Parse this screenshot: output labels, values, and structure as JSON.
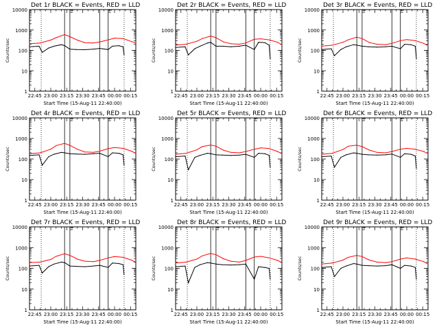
{
  "figure": {
    "xlabel": "Start Time (15-Aug-11 22:40:00)",
    "ylabel": "Counts/sec",
    "x_tick_labels": [
      "22:45",
      "23:00",
      "23:15",
      "23:30",
      "23:45",
      "00:00",
      "00:15"
    ],
    "y_tick_labels": [
      "1",
      "10",
      "100",
      "1000",
      "10000"
    ],
    "attenuator_labels": [
      "A",
      "A"
    ],
    "colors": {
      "events": "#000000",
      "lld": "#ff0000"
    }
  },
  "chart_data": [
    {
      "type": "line",
      "title": "Det 1r BLACK = Events, RED = LLD",
      "xlabel": "Start Time (15-Aug-11 22:40:00)",
      "ylabel": "Counts/sec",
      "ylim": [
        1,
        10000
      ],
      "yscale": "log",
      "vlines_dotted": [
        "22:51",
        "00:09"
      ],
      "vlines_solid": [
        "23:13",
        "23:18",
        "23:46",
        "23:54"
      ],
      "series": [
        {
          "name": "Events",
          "x": [
            "22:40",
            "22:49",
            "22:52",
            "22:58",
            "23:03",
            "23:10",
            "23:13",
            "23:18",
            "23:24",
            "23:32",
            "23:40",
            "23:46",
            "23:54",
            "23:58",
            "00:04",
            "00:08",
            "00:09"
          ],
          "y": [
            150,
            160,
            80,
            130,
            160,
            190,
            170,
            115,
            110,
            108,
            115,
            125,
            110,
            160,
            170,
            150,
            60
          ]
        },
        {
          "name": "LLD",
          "x": [
            "22:40",
            "22:50",
            "23:00",
            "23:05",
            "23:13",
            "23:18",
            "23:25",
            "23:32",
            "23:40",
            "23:46",
            "23:54",
            "00:00",
            "00:08",
            "00:16",
            "00:19"
          ],
          "y": [
            210,
            230,
            320,
            420,
            600,
            470,
            320,
            240,
            230,
            260,
            330,
            400,
            380,
            270,
            240
          ]
        }
      ]
    },
    {
      "type": "line",
      "title": "Det 2r BLACK = Events, RED = LLD",
      "xlabel": "Start Time (15-Aug-11 22:40:00)",
      "ylabel": "Counts/sec",
      "ylim": [
        1,
        10000
      ],
      "yscale": "log",
      "vlines_dotted": [
        "22:51",
        "00:09"
      ],
      "vlines_solid": [
        "23:13",
        "23:18",
        "23:46",
        "23:54"
      ],
      "series": [
        {
          "name": "Events",
          "x": [
            "22:40",
            "22:49",
            "22:52",
            "22:58",
            "23:03",
            "23:10",
            "23:13",
            "23:18",
            "23:24",
            "23:32",
            "23:40",
            "23:46",
            "23:54",
            "23:58",
            "00:04",
            "00:08",
            "00:09"
          ],
          "y": [
            140,
            150,
            60,
            120,
            160,
            230,
            250,
            160,
            160,
            150,
            160,
            180,
            110,
            250,
            240,
            180,
            40
          ]
        },
        {
          "name": "LLD",
          "x": [
            "22:40",
            "22:50",
            "23:00",
            "23:05",
            "23:13",
            "23:18",
            "23:25",
            "23:32",
            "23:40",
            "23:46",
            "23:54",
            "00:00",
            "00:08",
            "00:16",
            "00:19"
          ],
          "y": [
            180,
            200,
            280,
            380,
            500,
            420,
            260,
            210,
            200,
            230,
            350,
            370,
            330,
            250,
            200
          ]
        }
      ]
    },
    {
      "type": "line",
      "title": "Det 3r BLACK = Events, RED = LLD",
      "xlabel": "Start Time (15-Aug-11 22:40:00)",
      "ylabel": "Counts/sec",
      "ylim": [
        1,
        10000
      ],
      "yscale": "log",
      "vlines_dotted": [
        "22:51",
        "00:09"
      ],
      "vlines_solid": [
        "23:13",
        "23:18",
        "23:46",
        "23:54"
      ],
      "series": [
        {
          "name": "Events",
          "x": [
            "22:40",
            "22:49",
            "22:52",
            "22:58",
            "23:03",
            "23:10",
            "23:13",
            "23:18",
            "23:24",
            "23:32",
            "23:40",
            "23:46",
            "23:54",
            "23:58",
            "00:04",
            "00:08",
            "00:09"
          ],
          "y": [
            110,
            120,
            55,
            110,
            150,
            190,
            180,
            160,
            150,
            145,
            150,
            160,
            120,
            200,
            190,
            160,
            40
          ]
        },
        {
          "name": "LLD",
          "x": [
            "22:40",
            "22:50",
            "23:00",
            "23:05",
            "23:13",
            "23:18",
            "23:25",
            "23:32",
            "23:40",
            "23:46",
            "23:54",
            "00:00",
            "00:08",
            "00:16",
            "00:19"
          ],
          "y": [
            160,
            180,
            250,
            330,
            450,
            380,
            240,
            200,
            190,
            220,
            300,
            340,
            300,
            220,
            180
          ]
        }
      ]
    },
    {
      "type": "line",
      "title": "Det 4r BLACK = Events, RED = LLD",
      "xlabel": "Start Time (15-Aug-11 22:40:00)",
      "ylabel": "Counts/sec",
      "ylim": [
        1,
        10000
      ],
      "yscale": "log",
      "vlines_dotted": [
        "22:51",
        "00:09"
      ],
      "vlines_solid": [
        "23:13",
        "23:18",
        "23:46",
        "23:54"
      ],
      "series": [
        {
          "name": "Events",
          "x": [
            "22:40",
            "22:49",
            "22:52",
            "22:58",
            "23:03",
            "23:10",
            "23:13",
            "23:18",
            "23:24",
            "23:32",
            "23:40",
            "23:46",
            "23:54",
            "23:58",
            "00:04",
            "00:08",
            "00:09"
          ],
          "y": [
            150,
            160,
            50,
            130,
            170,
            210,
            200,
            180,
            175,
            170,
            180,
            190,
            130,
            200,
            190,
            160,
            50
          ]
        },
        {
          "name": "LLD",
          "x": [
            "22:40",
            "22:50",
            "23:00",
            "23:05",
            "23:13",
            "23:18",
            "23:25",
            "23:32",
            "23:40",
            "23:46",
            "23:54",
            "00:00",
            "00:08",
            "00:16",
            "00:19"
          ],
          "y": [
            180,
            200,
            300,
            450,
            580,
            460,
            300,
            220,
            210,
            240,
            320,
            360,
            330,
            240,
            200
          ]
        }
      ]
    },
    {
      "type": "line",
      "title": "Det 5r BLACK = Events, RED = LLD",
      "xlabel": "Start Time (15-Aug-11 22:40:00)",
      "ylabel": "Counts/sec",
      "ylim": [
        1,
        10000
      ],
      "yscale": "log",
      "vlines_dotted": [
        "22:51",
        "00:09"
      ],
      "vlines_solid": [
        "23:13",
        "23:18",
        "23:46",
        "23:54"
      ],
      "series": [
        {
          "name": "Events",
          "x": [
            "22:40",
            "22:49",
            "22:52",
            "22:58",
            "23:03",
            "23:10",
            "23:13",
            "23:18",
            "23:24",
            "23:32",
            "23:40",
            "23:46",
            "23:54",
            "23:58",
            "00:04",
            "00:08",
            "00:09"
          ],
          "y": [
            130,
            140,
            30,
            120,
            150,
            190,
            180,
            160,
            155,
            150,
            155,
            170,
            120,
            190,
            180,
            150,
            40
          ]
        },
        {
          "name": "LLD",
          "x": [
            "22:40",
            "22:50",
            "23:00",
            "23:05",
            "23:13",
            "23:18",
            "23:25",
            "23:32",
            "23:40",
            "23:46",
            "23:54",
            "00:00",
            "00:08",
            "00:16",
            "00:19"
          ],
          "y": [
            170,
            190,
            280,
            400,
            480,
            420,
            270,
            210,
            200,
            230,
            300,
            350,
            320,
            230,
            190
          ]
        }
      ]
    },
    {
      "type": "line",
      "title": "Det 6r BLACK = Events, RED = LLD",
      "xlabel": "Start Time (15-Aug-11 22:40:00)",
      "ylabel": "Counts/sec",
      "ylim": [
        1,
        10000
      ],
      "yscale": "log",
      "vlines_dotted": [
        "22:51",
        "00:09"
      ],
      "vlines_solid": [
        "23:13",
        "23:18",
        "23:46",
        "23:54"
      ],
      "series": [
        {
          "name": "Events",
          "x": [
            "22:40",
            "22:49",
            "22:52",
            "22:58",
            "23:03",
            "23:10",
            "23:13",
            "23:18",
            "23:24",
            "23:32",
            "23:40",
            "23:46",
            "23:54",
            "23:58",
            "00:04",
            "00:08",
            "00:09"
          ],
          "y": [
            130,
            140,
            40,
            120,
            160,
            200,
            190,
            170,
            160,
            155,
            160,
            175,
            120,
            180,
            170,
            140,
            35
          ]
        },
        {
          "name": "LLD",
          "x": [
            "22:40",
            "22:50",
            "23:00",
            "23:05",
            "23:13",
            "23:18",
            "23:25",
            "23:32",
            "23:40",
            "23:46",
            "23:54",
            "00:00",
            "00:08",
            "00:16",
            "00:19"
          ],
          "y": [
            170,
            190,
            290,
            420,
            470,
            400,
            270,
            210,
            200,
            230,
            300,
            330,
            300,
            230,
            190
          ]
        }
      ]
    },
    {
      "type": "line",
      "title": "Det 7r BLACK = Events, RED = LLD",
      "xlabel": "Start Time (15-Aug-11 22:40:00)",
      "ylabel": "Counts/sec",
      "ylim": [
        1,
        10000
      ],
      "yscale": "log",
      "vlines_dotted": [
        "22:51",
        "00:09"
      ],
      "vlines_solid": [
        "23:13",
        "23:18",
        "23:46",
        "23:54"
      ],
      "series": [
        {
          "name": "Events",
          "x": [
            "22:40",
            "22:49",
            "22:52",
            "22:58",
            "23:03",
            "23:10",
            "23:13",
            "23:18",
            "23:24",
            "23:32",
            "23:40",
            "23:46",
            "23:54",
            "23:58",
            "00:04",
            "00:08",
            "00:09"
          ],
          "y": [
            130,
            140,
            60,
            120,
            160,
            200,
            190,
            130,
            125,
            120,
            130,
            140,
            110,
            180,
            170,
            150,
            50
          ]
        },
        {
          "name": "LLD",
          "x": [
            "22:40",
            "22:50",
            "23:00",
            "23:05",
            "23:13",
            "23:18",
            "23:25",
            "23:32",
            "23:40",
            "23:46",
            "23:54",
            "00:00",
            "00:08",
            "00:16",
            "00:19"
          ],
          "y": [
            190,
            200,
            270,
            380,
            510,
            420,
            280,
            220,
            210,
            240,
            320,
            370,
            340,
            250,
            210
          ]
        }
      ]
    },
    {
      "type": "line",
      "title": "Det 8r BLACK = Events, RED = LLD",
      "xlabel": "Start Time (15-Aug-11 22:40:00)",
      "ylabel": "Counts/sec",
      "ylim": [
        1,
        10000
      ],
      "yscale": "log",
      "vlines_dotted": [
        "22:51",
        "00:09"
      ],
      "vlines_solid": [
        "23:13",
        "23:18",
        "23:46",
        "23:54"
      ],
      "series": [
        {
          "name": "Events",
          "x": [
            "22:40",
            "22:49",
            "22:52",
            "22:58",
            "23:03",
            "23:10",
            "23:13",
            "23:18",
            "23:24",
            "23:32",
            "23:40",
            "23:46",
            "23:54",
            "23:58",
            "00:04",
            "00:08",
            "00:09"
          ],
          "y": [
            120,
            130,
            20,
            110,
            150,
            190,
            180,
            160,
            150,
            145,
            150,
            160,
            30,
            120,
            110,
            100,
            30
          ]
        },
        {
          "name": "LLD",
          "x": [
            "22:40",
            "22:50",
            "23:00",
            "23:05",
            "23:13",
            "23:18",
            "23:25",
            "23:32",
            "23:40",
            "23:46",
            "23:54",
            "00:00",
            "00:08",
            "00:16",
            "00:19"
          ],
          "y": [
            180,
            200,
            280,
            400,
            520,
            450,
            290,
            220,
            200,
            240,
            350,
            380,
            320,
            240,
            200
          ]
        }
      ]
    },
    {
      "type": "line",
      "title": "Det 9r BLACK = Events, RED = LLD",
      "xlabel": "Start Time (15-Aug-11 22:40:00)",
      "ylabel": "Counts/sec",
      "ylim": [
        1,
        10000
      ],
      "yscale": "log",
      "vlines_dotted": [
        "22:51",
        "00:09"
      ],
      "vlines_solid": [
        "23:13",
        "23:18",
        "23:46",
        "23:54"
      ],
      "series": [
        {
          "name": "Events",
          "x": [
            "22:40",
            "22:49",
            "22:52",
            "22:58",
            "23:03",
            "23:10",
            "23:13",
            "23:18",
            "23:24",
            "23:32",
            "23:40",
            "23:46",
            "23:54",
            "23:58",
            "00:04",
            "00:08",
            "00:09"
          ],
          "y": [
            110,
            120,
            40,
            100,
            130,
            170,
            160,
            140,
            135,
            130,
            135,
            150,
            100,
            140,
            130,
            110,
            30
          ]
        },
        {
          "name": "LLD",
          "x": [
            "22:40",
            "22:50",
            "23:00",
            "23:05",
            "23:13",
            "23:18",
            "23:25",
            "23:32",
            "23:40",
            "23:46",
            "23:54",
            "00:00",
            "00:08",
            "00:16",
            "00:19"
          ],
          "y": [
            160,
            180,
            250,
            340,
            420,
            370,
            250,
            200,
            190,
            210,
            280,
            320,
            280,
            210,
            170
          ]
        }
      ]
    }
  ]
}
